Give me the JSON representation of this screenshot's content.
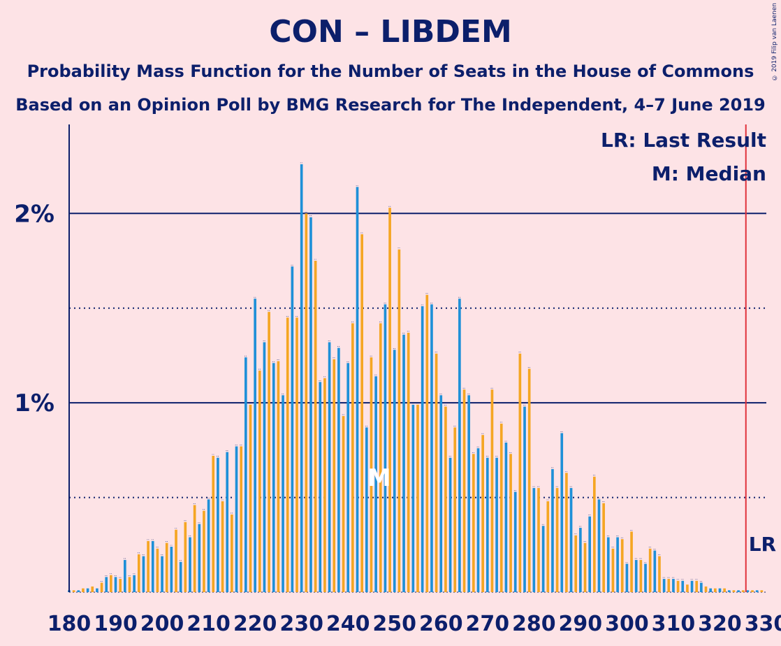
{
  "header": {
    "title": "CON – LIBDEM",
    "subtitle_1": "Probability Mass Function for the Number of Seats in the House of Commons",
    "subtitle_2": "Based on an Opinion Poll by BMG Research for The Independent, 4–7 June 2019",
    "copyright": "© 2019 Filip van Laenen"
  },
  "legend": {
    "last_result": "LR: Last Result",
    "median": "M: Median",
    "lr_marker": "LR",
    "median_marker": "M"
  },
  "colors": {
    "background": "#fde3e6",
    "blue_bars": "#1e90d8",
    "orange_bars": "#f5a623",
    "text": "#0c1f6b",
    "last_result_line": "#e0303a"
  },
  "chart_data": {
    "type": "bar",
    "x_start": 180,
    "x_step": 1,
    "values": [
      0.01,
      0.01,
      0.01,
      0.02,
      0.02,
      0.03,
      0.02,
      0.05,
      0.08,
      0.09,
      0.08,
      0.07,
      0.17,
      0.08,
      0.09,
      0.2,
      0.19,
      0.27,
      0.27,
      0.23,
      0.19,
      0.26,
      0.24,
      0.33,
      0.16,
      0.37,
      0.29,
      0.46,
      0.36,
      0.43,
      0.49,
      0.72,
      0.71,
      0.48,
      0.74,
      0.41,
      0.77,
      0.77,
      1.24,
      0.99,
      1.55,
      1.17,
      1.32,
      1.48,
      1.21,
      1.22,
      1.04,
      1.45,
      1.72,
      1.45,
      2.26,
      2.0,
      1.98,
      1.75,
      1.11,
      1.13,
      1.32,
      1.23,
      1.29,
      0.93,
      1.21,
      1.42,
      2.14,
      1.89,
      0.87,
      1.24,
      1.14,
      1.42,
      1.52,
      2.03,
      1.28,
      1.81,
      1.36,
      1.37,
      0.99,
      0.99,
      1.51,
      1.57,
      1.52,
      1.26,
      1.04,
      0.98,
      0.71,
      0.87,
      1.55,
      1.07,
      1.04,
      0.73,
      0.76,
      0.83,
      0.71,
      1.07,
      0.71,
      0.89,
      0.79,
      0.73,
      0.53,
      1.26,
      0.98,
      1.18,
      0.55,
      0.55,
      0.35,
      0.48,
      0.65,
      0.55,
      0.84,
      0.63,
      0.55,
      0.3,
      0.34,
      0.26,
      0.4,
      0.61,
      0.49,
      0.47,
      0.29,
      0.23,
      0.29,
      0.28,
      0.15,
      0.32,
      0.17,
      0.17,
      0.15,
      0.23,
      0.22,
      0.19,
      0.07,
      0.07,
      0.07,
      0.06,
      0.06,
      0.04,
      0.06,
      0.06,
      0.05,
      0.03,
      0.02,
      0.02,
      0.02,
      0.02,
      0.01,
      0.01,
      0.01,
      0.01,
      0.01,
      0.01,
      0.01,
      0.01
    ],
    "median_seat": 247,
    "last_result_seat": 326,
    "xlim": [
      180,
      330
    ],
    "ylim": [
      0,
      2.47
    ],
    "x_ticks": [
      "180",
      "190",
      "200",
      "210",
      "220",
      "230",
      "240",
      "250",
      "260",
      "270",
      "280",
      "290",
      "300",
      "310",
      "320",
      "330"
    ],
    "y_ticks": [
      {
        "value": 1,
        "label": "1%"
      },
      {
        "value": 2,
        "label": "2%"
      }
    ],
    "dotted_gridlines": [
      0.5,
      1.5
    ]
  }
}
